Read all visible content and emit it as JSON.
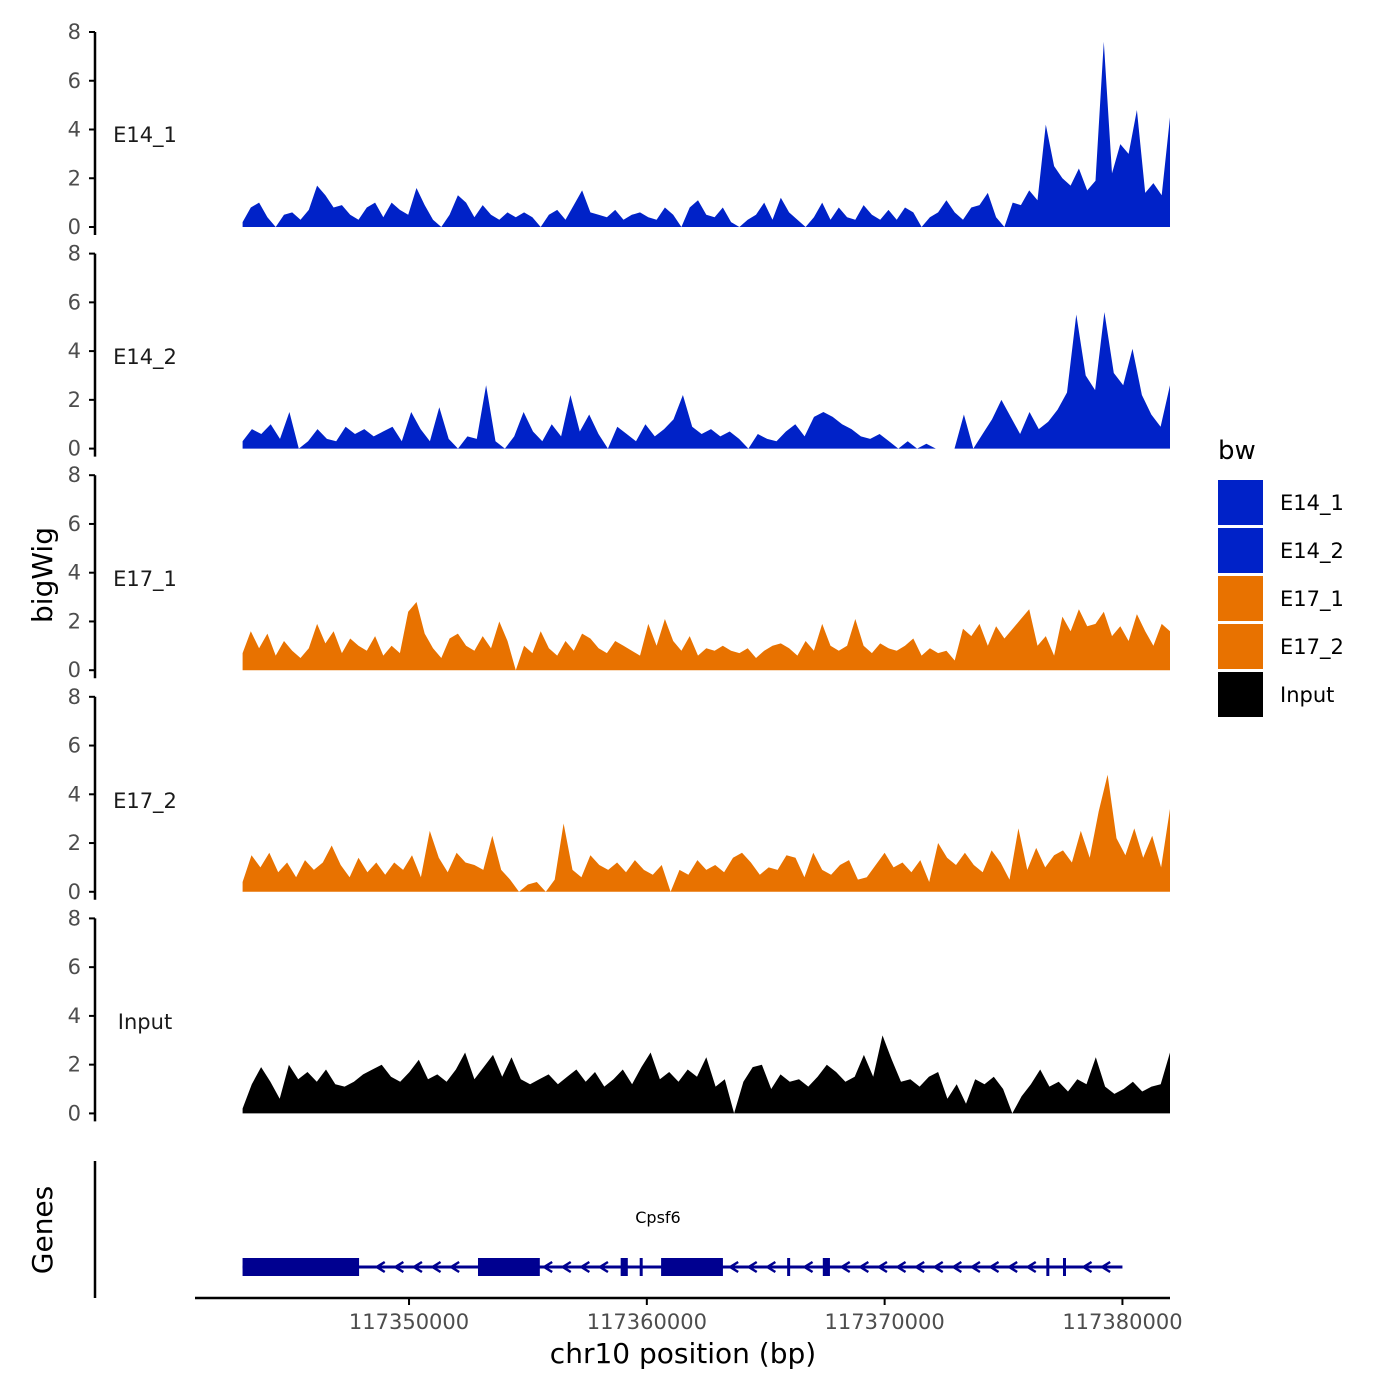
{
  "chart_data": {
    "type": "area",
    "ylabel": "bigWig",
    "xlabel": "chr10 position (bp)",
    "genes_label": "Genes",
    "ylim": [
      0,
      8
    ],
    "yticks": [
      "0",
      "2",
      "4",
      "6",
      "8"
    ],
    "xlim": [
      117341000,
      117382000
    ],
    "xticks": [
      {
        "value": 117350000,
        "label": "117350000"
      },
      {
        "value": 117360000,
        "label": "117360000"
      },
      {
        "value": 117370000,
        "label": "117370000"
      },
      {
        "value": 117380000,
        "label": "117380000"
      }
    ],
    "x_range": [
      117343000,
      117382000
    ],
    "legend": {
      "title": "bw",
      "entries": [
        {
          "name": "E14_1",
          "color": "#0022C8"
        },
        {
          "name": "E14_2",
          "color": "#0022C8"
        },
        {
          "name": "E17_1",
          "color": "#E87200"
        },
        {
          "name": "E17_2",
          "color": "#E87200"
        },
        {
          "name": "Input",
          "color": "#000000"
        }
      ]
    },
    "series": [
      {
        "name": "E14_1",
        "color": "#0022C8",
        "values": [
          0.2,
          0.8,
          1.0,
          0.4,
          0.0,
          0.5,
          0.6,
          0.3,
          0.7,
          1.7,
          1.3,
          0.8,
          0.9,
          0.5,
          0.3,
          0.8,
          1.0,
          0.4,
          1.0,
          0.7,
          0.5,
          1.6,
          0.9,
          0.3,
          0.0,
          0.5,
          1.3,
          1.0,
          0.4,
          0.9,
          0.5,
          0.3,
          0.6,
          0.4,
          0.6,
          0.4,
          0.0,
          0.5,
          0.7,
          0.3,
          0.9,
          1.5,
          0.6,
          0.5,
          0.4,
          0.7,
          0.3,
          0.5,
          0.6,
          0.4,
          0.3,
          0.8,
          0.5,
          0.0,
          0.8,
          1.1,
          0.5,
          0.4,
          0.8,
          0.2,
          0.0,
          0.3,
          0.5,
          1.0,
          0.3,
          1.2,
          0.6,
          0.3,
          0.0,
          0.4,
          1.0,
          0.3,
          0.8,
          0.4,
          0.3,
          0.9,
          0.5,
          0.3,
          0.7,
          0.3,
          0.8,
          0.6,
          0.0,
          0.4,
          0.6,
          1.1,
          0.6,
          0.3,
          0.8,
          0.9,
          1.4,
          0.4,
          0.0,
          1.0,
          0.9,
          1.5,
          1.1,
          4.2,
          2.5,
          2.0,
          1.7,
          2.4,
          1.5,
          1.9,
          7.6,
          2.2,
          3.4,
          3.0,
          4.8,
          1.4,
          1.8,
          1.3,
          4.5
        ]
      },
      {
        "name": "E14_2",
        "color": "#0022C8",
        "values": [
          0.3,
          0.8,
          0.6,
          1.0,
          0.4,
          1.5,
          0.0,
          0.3,
          0.8,
          0.4,
          0.3,
          0.9,
          0.6,
          0.8,
          0.5,
          0.7,
          0.9,
          0.3,
          1.5,
          0.8,
          0.3,
          1.7,
          0.4,
          0.0,
          0.5,
          0.4,
          2.6,
          0.3,
          0.0,
          0.5,
          1.5,
          0.7,
          0.3,
          1.0,
          0.5,
          2.2,
          0.7,
          1.4,
          0.6,
          0.0,
          0.9,
          0.6,
          0.3,
          1.0,
          0.5,
          0.8,
          1.2,
          2.2,
          0.9,
          0.6,
          0.8,
          0.5,
          0.7,
          0.4,
          0.0,
          0.6,
          0.4,
          0.3,
          0.7,
          1.0,
          0.5,
          1.3,
          1.5,
          1.3,
          1.0,
          0.8,
          0.5,
          0.4,
          0.6,
          0.3,
          0.0,
          0.3,
          0.0,
          0.2,
          0.0,
          0.0,
          0.0,
          1.4,
          0.0,
          0.6,
          1.2,
          2.0,
          1.3,
          0.6,
          1.5,
          0.8,
          1.1,
          1.6,
          2.3,
          5.5,
          3.0,
          2.4,
          5.6,
          3.1,
          2.6,
          4.1,
          2.2,
          1.4,
          0.9,
          2.6
        ]
      },
      {
        "name": "E17_1",
        "color": "#E87200",
        "values": [
          0.7,
          1.6,
          0.9,
          1.5,
          0.6,
          1.2,
          0.8,
          0.5,
          0.9,
          1.9,
          1.1,
          1.6,
          0.7,
          1.3,
          1.0,
          0.8,
          1.4,
          0.6,
          1.0,
          0.7,
          2.4,
          2.8,
          1.5,
          0.9,
          0.5,
          1.3,
          1.5,
          1.0,
          0.8,
          1.4,
          0.9,
          2.0,
          1.2,
          0.0,
          1.0,
          0.7,
          1.6,
          0.9,
          0.6,
          1.2,
          0.8,
          1.5,
          1.3,
          0.9,
          0.7,
          1.2,
          1.0,
          0.8,
          0.6,
          1.9,
          1.0,
          2.1,
          1.2,
          0.8,
          1.4,
          0.6,
          0.9,
          0.8,
          1.0,
          0.8,
          0.7,
          0.9,
          0.5,
          0.8,
          1.0,
          1.1,
          0.9,
          0.6,
          1.2,
          0.8,
          1.9,
          1.0,
          0.8,
          1.0,
          2.1,
          1.0,
          0.7,
          1.1,
          0.9,
          0.8,
          1.0,
          1.3,
          0.6,
          0.9,
          0.7,
          0.8,
          0.4,
          1.7,
          1.4,
          1.9,
          1.0,
          1.8,
          1.3,
          1.7,
          2.1,
          2.5,
          1.0,
          1.4,
          0.6,
          2.2,
          1.6,
          2.5,
          1.8,
          1.9,
          2.4,
          1.4,
          1.8,
          1.2,
          2.3,
          1.6,
          1.0,
          1.9,
          1.6
        ]
      },
      {
        "name": "E17_2",
        "color": "#E87200",
        "values": [
          0.4,
          1.5,
          1.0,
          1.6,
          0.8,
          1.2,
          0.6,
          1.3,
          0.9,
          1.2,
          1.9,
          1.1,
          0.6,
          1.4,
          0.8,
          1.2,
          0.7,
          1.2,
          0.9,
          1.5,
          0.6,
          2.5,
          1.4,
          0.8,
          1.6,
          1.2,
          1.1,
          0.9,
          2.3,
          0.9,
          0.5,
          0.0,
          0.3,
          0.4,
          0.0,
          0.5,
          2.8,
          0.9,
          0.6,
          1.5,
          1.1,
          0.9,
          1.2,
          0.8,
          1.3,
          0.9,
          0.7,
          1.1,
          0.0,
          0.9,
          0.7,
          1.3,
          0.9,
          1.1,
          0.8,
          1.4,
          1.6,
          1.2,
          0.7,
          1.0,
          0.9,
          1.5,
          1.4,
          0.6,
          1.6,
          0.9,
          0.7,
          1.1,
          1.3,
          0.5,
          0.6,
          1.1,
          1.6,
          1.0,
          1.2,
          0.8,
          1.3,
          0.4,
          2.0,
          1.4,
          1.1,
          1.6,
          1.1,
          0.8,
          1.7,
          1.2,
          0.5,
          2.6,
          0.9,
          1.8,
          1.0,
          1.5,
          1.7,
          1.2,
          2.5,
          1.4,
          3.3,
          4.8,
          2.2,
          1.5,
          2.6,
          1.4,
          2.3,
          1.0,
          3.4
        ]
      },
      {
        "name": "Input",
        "color": "#000000",
        "values": [
          0.2,
          1.2,
          1.9,
          1.3,
          0.6,
          2.0,
          1.4,
          1.7,
          1.3,
          1.8,
          1.2,
          1.1,
          1.3,
          1.6,
          1.8,
          2.0,
          1.5,
          1.3,
          1.7,
          2.2,
          1.4,
          1.6,
          1.3,
          1.8,
          2.5,
          1.4,
          1.9,
          2.4,
          1.5,
          2.3,
          1.4,
          1.2,
          1.4,
          1.6,
          1.2,
          1.5,
          1.8,
          1.3,
          1.7,
          1.1,
          1.4,
          1.8,
          1.2,
          1.9,
          2.5,
          1.4,
          1.7,
          1.3,
          1.8,
          1.5,
          2.3,
          1.1,
          1.4,
          0.0,
          1.3,
          1.9,
          2.0,
          1.0,
          1.6,
          1.3,
          1.4,
          1.1,
          1.5,
          2.0,
          1.7,
          1.3,
          1.5,
          2.4,
          1.5,
          3.2,
          2.2,
          1.3,
          1.4,
          1.1,
          1.5,
          1.7,
          0.6,
          1.2,
          0.4,
          1.4,
          1.2,
          1.5,
          1.0,
          0.0,
          0.7,
          1.2,
          1.8,
          1.1,
          1.3,
          0.9,
          1.4,
          1.2,
          2.3,
          1.1,
          0.8,
          1.0,
          1.3,
          0.9,
          1.1,
          1.2,
          2.5
        ]
      }
    ],
    "gene": {
      "name": "Cpsf6",
      "start": 117343000,
      "end": 117380000,
      "strand": "-",
      "exons": [
        [
          117343000,
          117347900
        ],
        [
          117352900,
          117355500
        ],
        [
          117358900,
          117359200
        ],
        [
          117359700,
          117359800
        ],
        [
          117360600,
          117363200
        ],
        [
          117365900,
          117366000
        ],
        [
          117367400,
          117367700
        ],
        [
          117376800,
          117376900
        ],
        [
          117377500,
          117377600
        ]
      ]
    }
  }
}
